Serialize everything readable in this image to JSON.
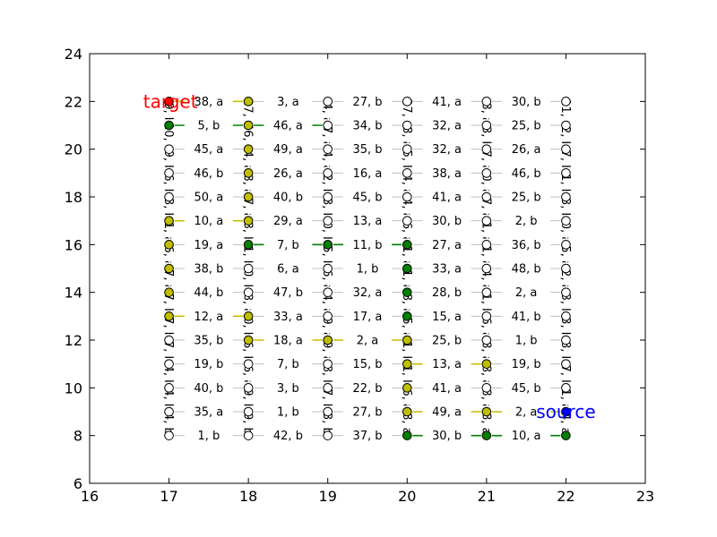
{
  "chart_data": {
    "type": "scatter",
    "title": "",
    "xlabel": "",
    "ylabel": "",
    "xlim": [
      16,
      23
    ],
    "ylim": [
      6,
      24
    ],
    "xticks": [
      16,
      17,
      18,
      19,
      20,
      21,
      22,
      23
    ],
    "yticks": [
      6,
      8,
      10,
      12,
      14,
      16,
      18,
      20,
      22,
      24
    ],
    "grid": false,
    "node_columns": [
      17,
      18,
      19,
      20,
      21,
      22
    ],
    "node_rows": [
      8,
      9,
      10,
      11,
      12,
      13,
      14,
      15,
      16,
      17,
      18,
      19,
      20,
      21,
      22
    ],
    "node_colors": {
      "default": "#ffffff",
      "yellow": "#bfbf00",
      "green": "#007f00",
      "target": "#ff0000",
      "source": "#0000ff"
    },
    "edge_colors": {
      "default": "#bfbfbf",
      "yellow": "#bfbf00",
      "green": "#007f00"
    },
    "colored_nodes": [
      {
        "x": 17,
        "y": 22,
        "color": "target"
      },
      {
        "x": 17,
        "y": 21,
        "color": "green"
      },
      {
        "x": 17,
        "y": 17,
        "color": "yellow"
      },
      {
        "x": 17,
        "y": 16,
        "color": "yellow"
      },
      {
        "x": 17,
        "y": 15,
        "color": "yellow"
      },
      {
        "x": 17,
        "y": 14,
        "color": "yellow"
      },
      {
        "x": 17,
        "y": 13,
        "color": "yellow"
      },
      {
        "x": 18,
        "y": 22,
        "color": "yellow"
      },
      {
        "x": 18,
        "y": 21,
        "color": "yellow"
      },
      {
        "x": 18,
        "y": 20,
        "color": "yellow"
      },
      {
        "x": 18,
        "y": 19,
        "color": "yellow"
      },
      {
        "x": 18,
        "y": 18,
        "color": "yellow"
      },
      {
        "x": 18,
        "y": 17,
        "color": "yellow"
      },
      {
        "x": 18,
        "y": 16,
        "color": "green"
      },
      {
        "x": 18,
        "y": 13,
        "color": "yellow"
      },
      {
        "x": 18,
        "y": 12,
        "color": "yellow"
      },
      {
        "x": 19,
        "y": 16,
        "color": "green"
      },
      {
        "x": 19,
        "y": 12,
        "color": "yellow"
      },
      {
        "x": 20,
        "y": 16,
        "color": "green"
      },
      {
        "x": 20,
        "y": 15,
        "color": "green"
      },
      {
        "x": 20,
        "y": 14,
        "color": "green"
      },
      {
        "x": 20,
        "y": 13,
        "color": "green"
      },
      {
        "x": 20,
        "y": 12,
        "color": "yellow"
      },
      {
        "x": 20,
        "y": 11,
        "color": "yellow"
      },
      {
        "x": 20,
        "y": 10,
        "color": "yellow"
      },
      {
        "x": 20,
        "y": 9,
        "color": "yellow"
      },
      {
        "x": 20,
        "y": 8,
        "color": "green"
      },
      {
        "x": 21,
        "y": 11,
        "color": "yellow"
      },
      {
        "x": 21,
        "y": 9,
        "color": "yellow"
      },
      {
        "x": 21,
        "y": 8,
        "color": "green"
      },
      {
        "x": 22,
        "y": 9,
        "color": "source"
      },
      {
        "x": 22,
        "y": 8,
        "color": "green"
      }
    ],
    "colored_edges": [
      {
        "from": [
          17,
          21
        ],
        "to": [
          18,
          21
        ],
        "color": "green"
      },
      {
        "from": [
          17,
          22
        ],
        "to": [
          18,
          22
        ],
        "color": "yellow"
      },
      {
        "from": [
          18,
          21
        ],
        "to": [
          19,
          21
        ],
        "color": "green"
      },
      {
        "from": [
          17,
          17
        ],
        "to": [
          18,
          17
        ],
        "color": "yellow"
      },
      {
        "from": [
          17,
          13
        ],
        "to": [
          18,
          13
        ],
        "color": "yellow"
      },
      {
        "from": [
          18,
          16
        ],
        "to": [
          19,
          16
        ],
        "color": "green"
      },
      {
        "from": [
          19,
          16
        ],
        "to": [
          20,
          16
        ],
        "color": "green"
      },
      {
        "from": [
          18,
          12
        ],
        "to": [
          19,
          12
        ],
        "color": "yellow"
      },
      {
        "from": [
          19,
          12
        ],
        "to": [
          20,
          12
        ],
        "color": "yellow"
      },
      {
        "from": [
          20,
          11
        ],
        "to": [
          21,
          11
        ],
        "color": "yellow"
      },
      {
        "from": [
          20,
          9
        ],
        "to": [
          21,
          9
        ],
        "color": "yellow"
      },
      {
        "from": [
          21,
          9
        ],
        "to": [
          22,
          9
        ],
        "color": "yellow"
      },
      {
        "from": [
          20,
          8
        ],
        "to": [
          21,
          8
        ],
        "color": "green"
      },
      {
        "from": [
          21,
          8
        ],
        "to": [
          22,
          8
        ],
        "color": "green"
      }
    ],
    "horizontal_edge_labels": [
      {
        "x": 17.5,
        "y": 22,
        "text": "38, a"
      },
      {
        "x": 18.5,
        "y": 22,
        "text": "3, a"
      },
      {
        "x": 19.5,
        "y": 22,
        "text": "27, b"
      },
      {
        "x": 20.5,
        "y": 22,
        "text": "41, a"
      },
      {
        "x": 21.5,
        "y": 22,
        "text": "30, b"
      },
      {
        "x": 17.5,
        "y": 21,
        "text": "5, b"
      },
      {
        "x": 18.5,
        "y": 21,
        "text": "46, a"
      },
      {
        "x": 19.5,
        "y": 21,
        "text": "34, b"
      },
      {
        "x": 20.5,
        "y": 21,
        "text": "32, a"
      },
      {
        "x": 21.5,
        "y": 21,
        "text": "25, b"
      },
      {
        "x": 17.5,
        "y": 20,
        "text": "45, a"
      },
      {
        "x": 18.5,
        "y": 20,
        "text": "49, a"
      },
      {
        "x": 19.5,
        "y": 20,
        "text": "35, b"
      },
      {
        "x": 20.5,
        "y": 20,
        "text": "32, a"
      },
      {
        "x": 21.5,
        "y": 20,
        "text": "26, a"
      },
      {
        "x": 17.5,
        "y": 19,
        "text": "46, b"
      },
      {
        "x": 18.5,
        "y": 19,
        "text": "26, a"
      },
      {
        "x": 19.5,
        "y": 19,
        "text": "16, a"
      },
      {
        "x": 20.5,
        "y": 19,
        "text": "38, a"
      },
      {
        "x": 21.5,
        "y": 19,
        "text": "46, b"
      },
      {
        "x": 17.5,
        "y": 18,
        "text": "50, a"
      },
      {
        "x": 18.5,
        "y": 18,
        "text": "40, b"
      },
      {
        "x": 19.5,
        "y": 18,
        "text": "45, b"
      },
      {
        "x": 20.5,
        "y": 18,
        "text": "41, a"
      },
      {
        "x": 21.5,
        "y": 18,
        "text": "25, b"
      },
      {
        "x": 17.5,
        "y": 17,
        "text": "10, a"
      },
      {
        "x": 18.5,
        "y": 17,
        "text": "29, a"
      },
      {
        "x": 19.5,
        "y": 17,
        "text": "13, a"
      },
      {
        "x": 20.5,
        "y": 17,
        "text": "30, b"
      },
      {
        "x": 21.5,
        "y": 17,
        "text": "2, b"
      },
      {
        "x": 17.5,
        "y": 16,
        "text": "19, a"
      },
      {
        "x": 18.5,
        "y": 16,
        "text": "7, b"
      },
      {
        "x": 19.5,
        "y": 16,
        "text": "11, b"
      },
      {
        "x": 20.5,
        "y": 16,
        "text": "27, a"
      },
      {
        "x": 21.5,
        "y": 16,
        "text": "36, b"
      },
      {
        "x": 17.5,
        "y": 15,
        "text": "38, b"
      },
      {
        "x": 18.5,
        "y": 15,
        "text": "6, a"
      },
      {
        "x": 19.5,
        "y": 15,
        "text": "1, b"
      },
      {
        "x": 20.5,
        "y": 15,
        "text": "33, a"
      },
      {
        "x": 21.5,
        "y": 15,
        "text": "48, b"
      },
      {
        "x": 17.5,
        "y": 14,
        "text": "44, b"
      },
      {
        "x": 18.5,
        "y": 14,
        "text": "47, b"
      },
      {
        "x": 19.5,
        "y": 14,
        "text": "32, a"
      },
      {
        "x": 20.5,
        "y": 14,
        "text": "28, b"
      },
      {
        "x": 21.5,
        "y": 14,
        "text": "2, a"
      },
      {
        "x": 17.5,
        "y": 13,
        "text": "12, a"
      },
      {
        "x": 18.5,
        "y": 13,
        "text": "33, a"
      },
      {
        "x": 19.5,
        "y": 13,
        "text": "17, a"
      },
      {
        "x": 20.5,
        "y": 13,
        "text": "15, a"
      },
      {
        "x": 21.5,
        "y": 13,
        "text": "41, b"
      },
      {
        "x": 17.5,
        "y": 12,
        "text": "35, b"
      },
      {
        "x": 18.5,
        "y": 12,
        "text": "18, a"
      },
      {
        "x": 19.5,
        "y": 12,
        "text": "2, a"
      },
      {
        "x": 20.5,
        "y": 12,
        "text": "25, b"
      },
      {
        "x": 21.5,
        "y": 12,
        "text": "1, b"
      },
      {
        "x": 17.5,
        "y": 11,
        "text": "19, b"
      },
      {
        "x": 18.5,
        "y": 11,
        "text": "7, b"
      },
      {
        "x": 19.5,
        "y": 11,
        "text": "15, b"
      },
      {
        "x": 20.5,
        "y": 11,
        "text": "13, a"
      },
      {
        "x": 21.5,
        "y": 11,
        "text": "19, b"
      },
      {
        "x": 17.5,
        "y": 10,
        "text": "40, b"
      },
      {
        "x": 18.5,
        "y": 10,
        "text": "3, b"
      },
      {
        "x": 19.5,
        "y": 10,
        "text": "22, b"
      },
      {
        "x": 20.5,
        "y": 10,
        "text": "41, a"
      },
      {
        "x": 21.5,
        "y": 10,
        "text": "45, b"
      },
      {
        "x": 17.5,
        "y": 9,
        "text": "35, a"
      },
      {
        "x": 18.5,
        "y": 9,
        "text": "1, b"
      },
      {
        "x": 19.5,
        "y": 9,
        "text": "27, b"
      },
      {
        "x": 20.5,
        "y": 9,
        "text": "49, a"
      },
      {
        "x": 21.5,
        "y": 9,
        "text": "2, a"
      },
      {
        "x": 17.5,
        "y": 8,
        "text": "1, b"
      },
      {
        "x": 18.5,
        "y": 8,
        "text": "42, b"
      },
      {
        "x": 19.5,
        "y": 8,
        "text": "37, b"
      },
      {
        "x": 20.5,
        "y": 8,
        "text": "30, b"
      },
      {
        "x": 21.5,
        "y": 8,
        "text": "10, a"
      }
    ],
    "vertical_edge_labels": [
      {
        "x": 17,
        "y": 21.5,
        "text": "9, b"
      },
      {
        "x": 18,
        "y": 21.5,
        "text": "27, b"
      },
      {
        "x": 19,
        "y": 21.5,
        "text": "4, a"
      },
      {
        "x": 20,
        "y": 21.5,
        "text": "27, b"
      },
      {
        "x": 21,
        "y": 21.5,
        "text": "8, a"
      },
      {
        "x": 22,
        "y": 21.5,
        "text": "11, b"
      },
      {
        "x": 17,
        "y": 20.5,
        "text": "10, a"
      },
      {
        "x": 18,
        "y": 20.5,
        "text": "46, a"
      },
      {
        "x": 19,
        "y": 20.5,
        "text": "7, a"
      },
      {
        "x": 20,
        "y": 20.5,
        "text": "8, a"
      },
      {
        "x": 21,
        "y": 20.5,
        "text": "3, b"
      },
      {
        "x": 22,
        "y": 20.5,
        "text": "2, b"
      },
      {
        "x": 17,
        "y": 19.5,
        "text": "9, b"
      },
      {
        "x": 18,
        "y": 19.5,
        "text": "4, a"
      },
      {
        "x": 19,
        "y": 19.5,
        "text": "4, a"
      },
      {
        "x": 20,
        "y": 19.5,
        "text": "5, b"
      },
      {
        "x": 21,
        "y": 19.5,
        "text": "7, a"
      },
      {
        "x": 22,
        "y": 19.5,
        "text": "7, b"
      },
      {
        "x": 17,
        "y": 18.5,
        "text": "6, b"
      },
      {
        "x": 18,
        "y": 18.5,
        "text": "8, a"
      },
      {
        "x": 19,
        "y": 18.5,
        "text": "2, b"
      },
      {
        "x": 20,
        "y": 18.5,
        "text": "4, a"
      },
      {
        "x": 21,
        "y": 18.5,
        "text": "0, a"
      },
      {
        "x": 22,
        "y": 18.5,
        "text": "1, b"
      },
      {
        "x": 17,
        "y": 17.5,
        "text": "3, b"
      },
      {
        "x": 18,
        "y": 17.5,
        "text": "7, a"
      },
      {
        "x": 19,
        "y": 17.5,
        "text": "3, b"
      },
      {
        "x": 20,
        "y": 17.5,
        "text": "4, a"
      },
      {
        "x": 21,
        "y": 17.5,
        "text": "7, a"
      },
      {
        "x": 22,
        "y": 17.5,
        "text": "3, b"
      },
      {
        "x": 17,
        "y": 16.5,
        "text": "1, a"
      },
      {
        "x": 18,
        "y": 16.5,
        "text": "3, b"
      },
      {
        "x": 19,
        "y": 16.5,
        "text": "0, b"
      },
      {
        "x": 20,
        "y": 16.5,
        "text": "6, a"
      },
      {
        "x": 21,
        "y": 16.5,
        "text": "1, a"
      },
      {
        "x": 22,
        "y": 16.5,
        "text": "0, a"
      },
      {
        "x": 17,
        "y": 15.5,
        "text": "6, a"
      },
      {
        "x": 18,
        "y": 15.5,
        "text": "1, b"
      },
      {
        "x": 19,
        "y": 15.5,
        "text": "5, b"
      },
      {
        "x": 20,
        "y": 15.5,
        "text": "1, a"
      },
      {
        "x": 21,
        "y": 15.5,
        "text": "1, a"
      },
      {
        "x": 22,
        "y": 15.5,
        "text": "5, a"
      },
      {
        "x": 17,
        "y": 14.5,
        "text": "7, a"
      },
      {
        "x": 18,
        "y": 14.5,
        "text": "0, b"
      },
      {
        "x": 19,
        "y": 14.5,
        "text": "6, a"
      },
      {
        "x": 20,
        "y": 14.5,
        "text": "1, a"
      },
      {
        "x": 21,
        "y": 14.5,
        "text": "4, a"
      },
      {
        "x": 22,
        "y": 14.5,
        "text": "2, a"
      },
      {
        "x": 17,
        "y": 13.5,
        "text": "7, b"
      },
      {
        "x": 18,
        "y": 13.5,
        "text": "8, a"
      },
      {
        "x": 19,
        "y": 13.5,
        "text": "4, a"
      },
      {
        "x": 20,
        "y": 13.5,
        "text": "8, a"
      },
      {
        "x": 21,
        "y": 13.5,
        "text": "1, b"
      },
      {
        "x": 22,
        "y": 13.5,
        "text": "3, b"
      },
      {
        "x": 17,
        "y": 12.5,
        "text": "7, b"
      },
      {
        "x": 18,
        "y": 12.5,
        "text": "0, b"
      },
      {
        "x": 19,
        "y": 12.5,
        "text": "9, a"
      },
      {
        "x": 20,
        "y": 12.5,
        "text": "5, a"
      },
      {
        "x": 21,
        "y": 12.5,
        "text": "6, a"
      },
      {
        "x": 22,
        "y": 12.5,
        "text": "3, b"
      },
      {
        "x": 17,
        "y": 11.5,
        "text": "7, b"
      },
      {
        "x": 18,
        "y": 11.5,
        "text": "6, b"
      },
      {
        "x": 19,
        "y": 11.5,
        "text": "9, a"
      },
      {
        "x": 20,
        "y": 11.5,
        "text": "1, b"
      },
      {
        "x": 21,
        "y": 11.5,
        "text": "8, a"
      },
      {
        "x": 22,
        "y": 11.5,
        "text": "8, b"
      },
      {
        "x": 17,
        "y": 10.5,
        "text": "4, b"
      },
      {
        "x": 18,
        "y": 10.5,
        "text": "6, a"
      },
      {
        "x": 19,
        "y": 10.5,
        "text": "8, b"
      },
      {
        "x": 20,
        "y": 10.5,
        "text": "1, b"
      },
      {
        "x": 21,
        "y": 10.5,
        "text": "8, a"
      },
      {
        "x": 22,
        "y": 10.5,
        "text": "7, b"
      },
      {
        "x": 17,
        "y": 9.5,
        "text": "4, b"
      },
      {
        "x": 18,
        "y": 9.5,
        "text": "9, b"
      },
      {
        "x": 19,
        "y": 9.5,
        "text": "7, b"
      },
      {
        "x": 20,
        "y": 9.5,
        "text": "6, a"
      },
      {
        "x": 21,
        "y": 9.5,
        "text": "8, a"
      },
      {
        "x": 22,
        "y": 9.5,
        "text": "1, a"
      },
      {
        "x": 17,
        "y": 8.5,
        "text": "4, b"
      },
      {
        "x": 18,
        "y": 8.5,
        "text": "9, b"
      },
      {
        "x": 19,
        "y": 8.5,
        "text": "3, b"
      },
      {
        "x": 20,
        "y": 8.5,
        "text": "8, a"
      },
      {
        "x": 21,
        "y": 8.5,
        "text": "8, a"
      },
      {
        "x": 22,
        "y": 8.5,
        "text": "4, a"
      }
    ],
    "node_labels": [
      {
        "x": 17,
        "y": 22,
        "text": "target",
        "color": "#ff0000",
        "anchor": "end"
      },
      {
        "x": 22,
        "y": 9,
        "text": "source",
        "color": "#0000ff",
        "anchor": "middle"
      }
    ]
  }
}
